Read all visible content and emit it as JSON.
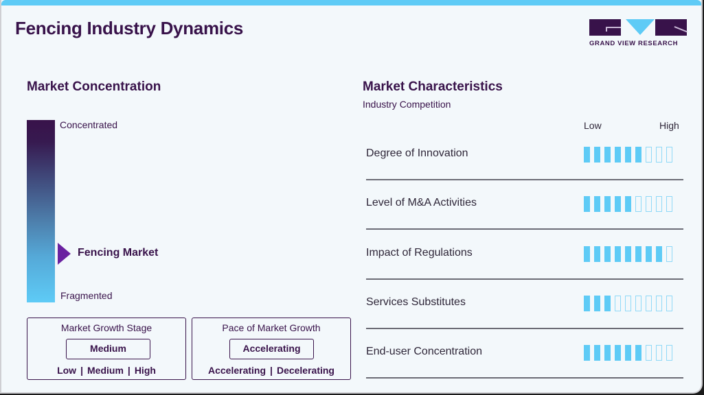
{
  "header": {
    "title": "Fencing Industry Dynamics",
    "logo_text": "GRAND VIEW RESEARCH"
  },
  "colors": {
    "brand_dark": "#38124a",
    "accent_blue": "#5ecbf6",
    "marker_purple": "#6a22a0",
    "background": "#f3f8fb"
  },
  "concentration": {
    "heading": "Market Concentration",
    "top_label": "Concentrated",
    "bottom_label": "Fragmented",
    "marker_label": "Fencing Market",
    "marker_position_pct": 73
  },
  "growth_stage": {
    "heading": "Market Growth Stage",
    "value": "Medium",
    "options": [
      "Low",
      "Medium",
      "High"
    ]
  },
  "growth_pace": {
    "heading": "Pace of Market Growth",
    "value": "Accelerating",
    "options": [
      "Accelerating",
      "Decelerating"
    ]
  },
  "characteristics": {
    "heading": "Market Characteristics",
    "subheading": "Industry Competition",
    "scale_low": "Low",
    "scale_high": "High",
    "max_level": 9,
    "items": [
      {
        "label": "Degree of Innovation",
        "level": 6
      },
      {
        "label": "Level of M&A Activities",
        "level": 5
      },
      {
        "label": "Impact of Regulations",
        "level": 8
      },
      {
        "label": "Services Substitutes",
        "level": 3
      },
      {
        "label": "End-user Concentration",
        "level": 6
      }
    ]
  }
}
